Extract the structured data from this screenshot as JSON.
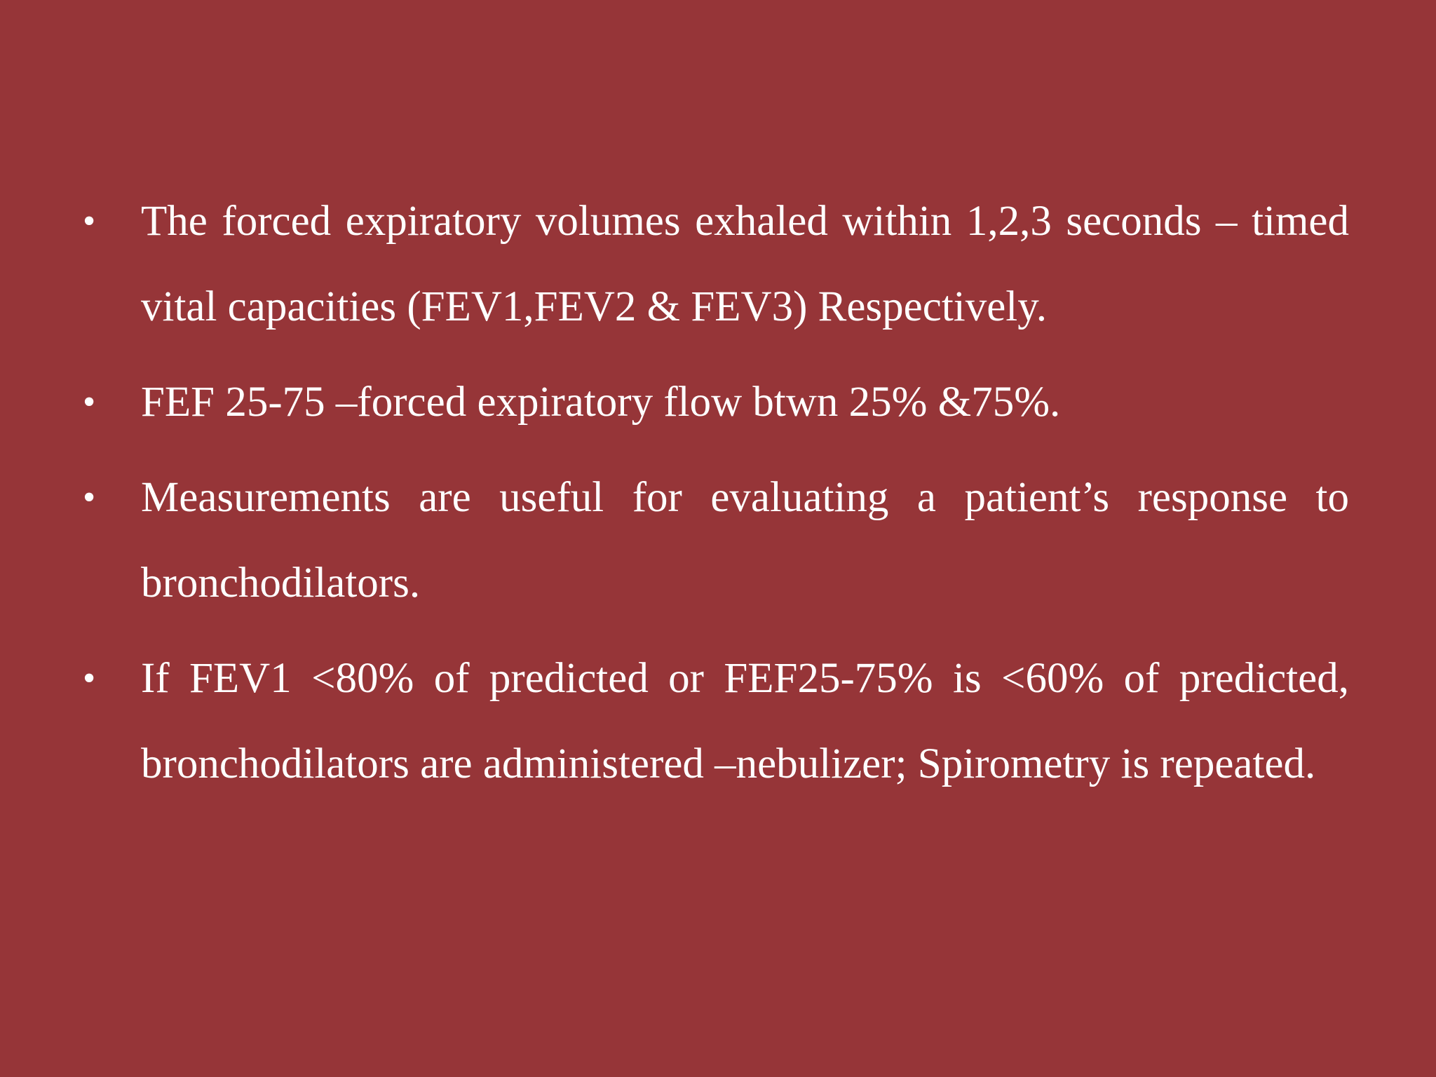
{
  "slide": {
    "background_color": "#963538",
    "text_color": "#ffffff",
    "bullet_glyph": "•",
    "bullets": [
      "The forced expiratory volumes exhaled within 1,2,3 seconds – timed vital capacities (FEV1,FEV2 & FEV3) Respectively.",
      "FEF 25-75 –forced expiratory flow btwn 25% &75%.",
      "Measurements are useful for evaluating a patient’s response to bronchodilators.",
      "If FEV1 <80% of predicted or FEF25-75% is <60% of predicted, bronchodilators are administered –nebulizer; Spirometry is repeated."
    ]
  }
}
